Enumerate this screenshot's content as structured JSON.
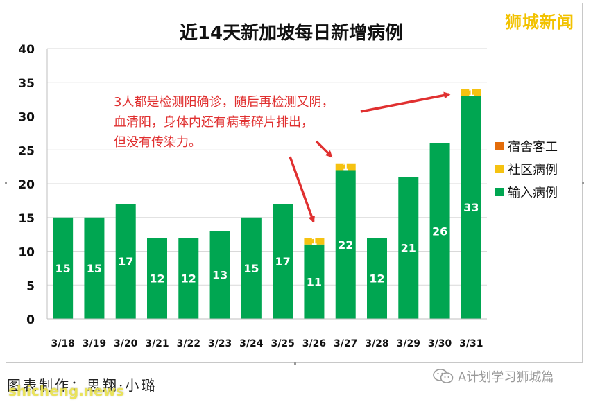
{
  "chart_data": {
    "type": "bar",
    "title": "近14天新加坡每日新增病例",
    "categories": [
      "3/18",
      "3/19",
      "3/20",
      "3/21",
      "3/22",
      "3/23",
      "3/24",
      "3/25",
      "3/26",
      "3/27",
      "3/28",
      "3/29",
      "3/30",
      "3/31"
    ],
    "series": [
      {
        "name": "输入病例",
        "color": "#00a651",
        "values": [
          15,
          15,
          17,
          12,
          12,
          13,
          15,
          17,
          11,
          22,
          12,
          21,
          26,
          33
        ]
      },
      {
        "name": "社区病例",
        "color": "#f5c211",
        "values": [
          0,
          0,
          0,
          0,
          0,
          0,
          0,
          0,
          1,
          1,
          0,
          0,
          0,
          1
        ]
      },
      {
        "name": "宿舍客工",
        "color": "#e36c0a",
        "values": [
          0,
          0,
          0,
          0,
          0,
          0,
          0,
          0,
          0,
          0,
          0,
          0,
          0,
          0
        ]
      }
    ],
    "ylim": [
      0,
      40
    ],
    "yticks": [
      0,
      5,
      10,
      15,
      20,
      25,
      30,
      35,
      40
    ],
    "grid": true,
    "legend_position": "right",
    "annotation": [
      "3人都是检测阳确诊，随后再检测又阴，",
      "血清阳，身体内还有病毒碎片排出，",
      "但没有传染力。"
    ],
    "annotation_color": "#e03030"
  },
  "watermark": "狮城新闻",
  "credit": "图表制作：思翔·小璐",
  "site": "shicheng.news",
  "wechat_label": "A计划学习狮城篇"
}
